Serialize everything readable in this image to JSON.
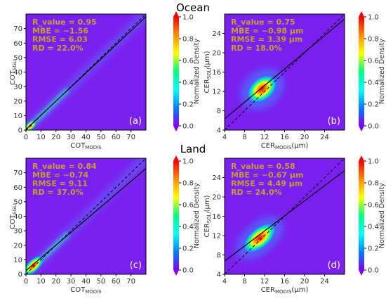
{
  "sections": [
    {
      "title": "Ocean"
    },
    {
      "title": "Land"
    }
  ],
  "colorbar": {
    "label": "Normalized Density",
    "ticks": [
      "1.0",
      "0.8",
      "0.6",
      "0.4",
      "0.2",
      "0.0"
    ],
    "colors": [
      "#ff0000",
      "#ff8c00",
      "#ffff00",
      "#00ff80",
      "#00ffff",
      "#0080ff",
      "#8000ff"
    ]
  },
  "colors": {
    "background_density": "#7a1ff0",
    "stat_text": "#c6a02a",
    "fit_line": "#000000"
  },
  "chart_data": [
    {
      "panel": "(a)",
      "type": "heatmap",
      "xlabel_base": "COT",
      "xlabel_sub": "MODIS",
      "ylabel_base": "COT",
      "ylabel_sub": "SGLI",
      "ylabel_unit": "",
      "xticks": [
        "0",
        "10",
        "20",
        "30",
        "40",
        "50",
        "60",
        "70"
      ],
      "yticks": [
        "0",
        "10",
        "20",
        "30",
        "40",
        "50",
        "60",
        "70"
      ],
      "xlim": [
        0,
        80
      ],
      "ylim": [
        0,
        80
      ],
      "stats": [
        "R_value = 0.95",
        "MBE = −1.56",
        "RMSE = 6.03",
        "RD = 22.0%"
      ],
      "fit_line": {
        "slope": 0.97,
        "intercept": 0.6
      },
      "one_to_one": true,
      "density_peak": {
        "x": 3,
        "y": 3
      }
    },
    {
      "panel": "(b)",
      "type": "heatmap",
      "xlabel_base": "CER",
      "xlabel_sub": "MODIS",
      "xlabel_unit": "(μm)",
      "ylabel_base": "CER",
      "ylabel_sub": "SGLI",
      "ylabel_unit": "(μm)",
      "xticks": [
        "4",
        "8",
        "12",
        "16",
        "20",
        "24"
      ],
      "yticks": [
        "4",
        "8",
        "12",
        "16",
        "20",
        "24"
      ],
      "xlim": [
        4,
        28
      ],
      "ylim": [
        4,
        28
      ],
      "stats": [
        "R_value = 0.75",
        "MBE = −0.98 μm",
        "RMSE = 3.39 μm",
        "RD = 18.0%"
      ],
      "fit_line": {
        "slope": 0.86,
        "intercept": 2.9
      },
      "one_to_one": true,
      "density_peak": {
        "x": 11.5,
        "y": 12.5
      }
    },
    {
      "panel": "(c)",
      "type": "heatmap",
      "xlabel_base": "COT",
      "xlabel_sub": "MODIS",
      "ylabel_base": "COT",
      "ylabel_sub": "SGLI",
      "ylabel_unit": "",
      "xticks": [
        "0",
        "10",
        "20",
        "30",
        "40",
        "50",
        "60",
        "70"
      ],
      "yticks": [
        "0",
        "10",
        "20",
        "30",
        "40",
        "50",
        "60",
        "70"
      ],
      "xlim": [
        0,
        80
      ],
      "ylim": [
        0,
        80
      ],
      "stats": [
        "R_value = 0.84",
        "MBE = −0.74",
        "RMSE = 9.11",
        "RD = 37.0%"
      ],
      "fit_line": {
        "slope": 0.88,
        "intercept": 2.5
      },
      "one_to_one": true,
      "density_peak": {
        "x": 5,
        "y": 6
      }
    },
    {
      "panel": "(d)",
      "type": "heatmap",
      "xlabel_base": "CER",
      "xlabel_sub": "MODIS",
      "xlabel_unit": "(μm)",
      "ylabel_base": "CER",
      "ylabel_sub": "SGLI",
      "ylabel_unit": "(μm)",
      "xticks": [
        "4",
        "8",
        "12",
        "16",
        "20",
        "24"
      ],
      "yticks": [
        "4",
        "8",
        "12",
        "16",
        "20",
        "24"
      ],
      "xlim": [
        4,
        28
      ],
      "ylim": [
        4,
        28
      ],
      "stats": [
        "R_value = 0.58",
        "MBE = −0.67 μm",
        "RMSE = 4.49 μm",
        "RD = 24.0%"
      ],
      "fit_line": {
        "slope": 0.78,
        "intercept": 3.6
      },
      "one_to_one": true,
      "density_peak": {
        "x": 11,
        "y": 11.5
      }
    }
  ]
}
